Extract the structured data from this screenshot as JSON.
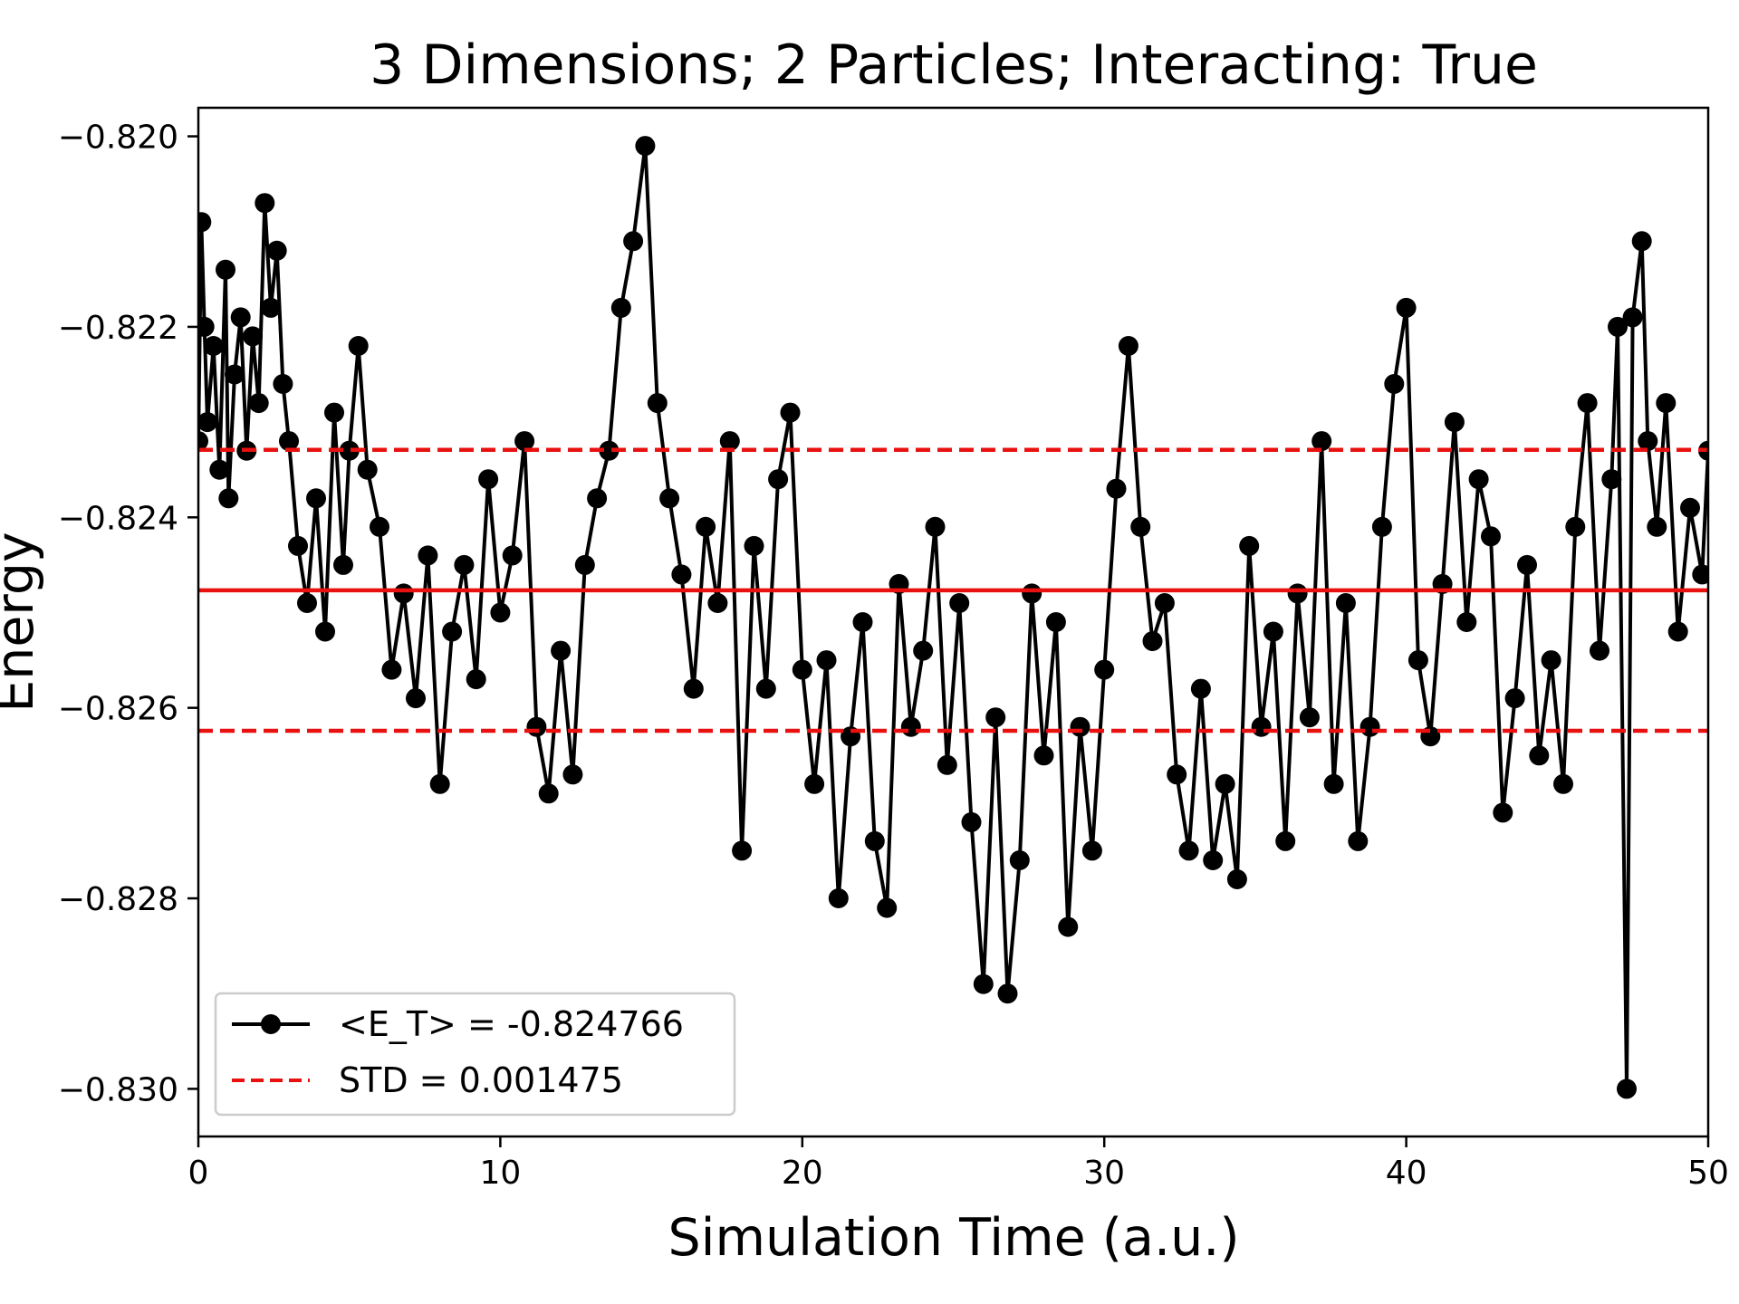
{
  "chart_data": {
    "type": "line",
    "title": "3 Dimensions; 2 Particles; Interacting: True",
    "xlabel": "Simulation Time (a.u.)",
    "ylabel": "Energy",
    "xlim": [
      0,
      50
    ],
    "ylim": [
      -0.8305,
      -0.8197
    ],
    "xticks": [
      0,
      10,
      20,
      30,
      40,
      50
    ],
    "xtick_labels": [
      "0",
      "10",
      "20",
      "30",
      "40",
      "50"
    ],
    "yticks": [
      -0.82,
      -0.822,
      -0.824,
      -0.826,
      -0.828,
      -0.83
    ],
    "ytick_labels": [
      "−0.820",
      "−0.822",
      "−0.824",
      "−0.826",
      "−0.828",
      "−0.830"
    ],
    "grid": false,
    "legend_position": "lower-left",
    "series": [
      {
        "name": "<E_T> = -0.824766",
        "style": "line-with-markers",
        "color": "#000000",
        "x": [
          0,
          0.1,
          0.2,
          0.3,
          0.5,
          0.7,
          0.9,
          1.0,
          1.2,
          1.4,
          1.6,
          1.8,
          2.0,
          2.2,
          2.4,
          2.6,
          2.8,
          3.0,
          3.3,
          3.6,
          3.9,
          4.2,
          4.5,
          4.8,
          5.0,
          5.3,
          5.6,
          6.0,
          6.4,
          6.8,
          7.2,
          7.6,
          8.0,
          8.4,
          8.8,
          9.2,
          9.6,
          10.0,
          10.4,
          10.8,
          11.2,
          11.6,
          12.0,
          12.4,
          12.8,
          13.2,
          13.6,
          14.0,
          14.4,
          14.8,
          15.2,
          15.6,
          16.0,
          16.4,
          16.8,
          17.2,
          17.6,
          18.0,
          18.4,
          18.8,
          19.2,
          19.6,
          20.0,
          20.4,
          20.8,
          21.2,
          21.6,
          22.0,
          22.4,
          22.8,
          23.2,
          23.6,
          24.0,
          24.4,
          24.8,
          25.2,
          25.6,
          26.0,
          26.4,
          26.8,
          27.2,
          27.6,
          28.0,
          28.4,
          28.8,
          29.2,
          29.6,
          30.0,
          30.4,
          30.8,
          31.2,
          31.6,
          32.0,
          32.4,
          32.8,
          33.2,
          33.6,
          34.0,
          34.4,
          34.8,
          35.2,
          35.6,
          36.0,
          36.4,
          36.8,
          37.2,
          37.6,
          38.0,
          38.4,
          38.8,
          39.2,
          39.6,
          40.0,
          40.4,
          40.8,
          41.2,
          41.6,
          42.0,
          42.4,
          42.8,
          43.2,
          43.6,
          44.0,
          44.4,
          44.8,
          45.2,
          45.6,
          46.0,
          46.4,
          46.8,
          47.0,
          47.3,
          47.5,
          47.8,
          48.0,
          48.3,
          48.6,
          49.0,
          49.4,
          49.8,
          50.0
        ],
        "y": [
          -0.8232,
          -0.8209,
          -0.822,
          -0.823,
          -0.8222,
          -0.8235,
          -0.8214,
          -0.8238,
          -0.8225,
          -0.8219,
          -0.8233,
          -0.8221,
          -0.8228,
          -0.8207,
          -0.8218,
          -0.8212,
          -0.8226,
          -0.8232,
          -0.8243,
          -0.8249,
          -0.8238,
          -0.8252,
          -0.8229,
          -0.8245,
          -0.8233,
          -0.8222,
          -0.8235,
          -0.8241,
          -0.8256,
          -0.8248,
          -0.8259,
          -0.8244,
          -0.8268,
          -0.8252,
          -0.8245,
          -0.8257,
          -0.8236,
          -0.825,
          -0.8244,
          -0.8232,
          -0.8262,
          -0.8269,
          -0.8254,
          -0.8267,
          -0.8245,
          -0.8238,
          -0.8233,
          -0.8218,
          -0.8211,
          -0.8201,
          -0.8228,
          -0.8238,
          -0.8246,
          -0.8258,
          -0.8241,
          -0.8249,
          -0.8232,
          -0.8275,
          -0.8243,
          -0.8258,
          -0.8236,
          -0.8229,
          -0.8256,
          -0.8268,
          -0.8255,
          -0.828,
          -0.8263,
          -0.8251,
          -0.8274,
          -0.8281,
          -0.8247,
          -0.8262,
          -0.8254,
          -0.8241,
          -0.8266,
          -0.8249,
          -0.8272,
          -0.8289,
          -0.8261,
          -0.829,
          -0.8276,
          -0.8248,
          -0.8265,
          -0.8251,
          -0.8283,
          -0.8262,
          -0.8275,
          -0.8256,
          -0.8237,
          -0.8222,
          -0.8241,
          -0.8253,
          -0.8249,
          -0.8267,
          -0.8275,
          -0.8258,
          -0.8276,
          -0.8268,
          -0.8278,
          -0.8243,
          -0.8262,
          -0.8252,
          -0.8274,
          -0.8248,
          -0.8261,
          -0.8232,
          -0.8268,
          -0.8249,
          -0.8274,
          -0.8262,
          -0.8241,
          -0.8226,
          -0.8218,
          -0.8255,
          -0.8263,
          -0.8247,
          -0.823,
          -0.8251,
          -0.8236,
          -0.8242,
          -0.8271,
          -0.8259,
          -0.8245,
          -0.8265,
          -0.8255,
          -0.8268,
          -0.8241,
          -0.8228,
          -0.8254,
          -0.8236,
          -0.822,
          -0.83,
          -0.8219,
          -0.8211,
          -0.8232,
          -0.8241,
          -0.8228,
          -0.8252,
          -0.8239,
          -0.8246,
          -0.8233
        ]
      }
    ],
    "mean_line": {
      "value": -0.824766,
      "color": "#e8110f",
      "style": "solid"
    },
    "std_lines": {
      "values": [
        -0.823291,
        -0.826241
      ],
      "color": "#e8110f",
      "style": "dashed",
      "name": "STD = 0.001475"
    },
    "legend": [
      {
        "label": "<E_T> = -0.824766",
        "style": "line-marker",
        "color": "#000000"
      },
      {
        "label": "STD = 0.001475",
        "style": "dashed",
        "color": "#e8110f"
      }
    ]
  }
}
